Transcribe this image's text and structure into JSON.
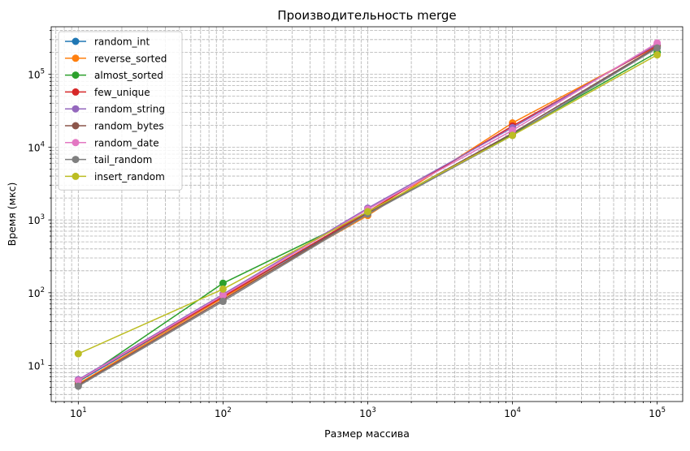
{
  "chart_data": {
    "type": "line",
    "title": "Производительность merge",
    "xlabel": "Размер массива",
    "ylabel": "Время (мкс)",
    "xscale": "log",
    "yscale": "log",
    "xlim": [
      6.5,
      150000
    ],
    "ylim": [
      3.2,
      450000
    ],
    "grid": true,
    "legend_position": "upper-left",
    "x": [
      10,
      100,
      1000,
      10000,
      100000
    ],
    "x_tick_labels": [
      {
        "base": "10",
        "exp": "1"
      },
      {
        "base": "10",
        "exp": "2"
      },
      {
        "base": "10",
        "exp": "3"
      },
      {
        "base": "10",
        "exp": "4"
      },
      {
        "base": "10",
        "exp": "5"
      }
    ],
    "y_tick_labels": [
      {
        "value": 10,
        "base": "10",
        "exp": "1"
      },
      {
        "value": 100,
        "base": "10",
        "exp": "2"
      },
      {
        "value": 1000,
        "base": "10",
        "exp": "3"
      },
      {
        "value": 10000,
        "base": "10",
        "exp": "4"
      },
      {
        "value": 100000,
        "base": "10",
        "exp": "5"
      }
    ],
    "series": [
      {
        "name": "random_int",
        "color": "#1f77b4",
        "values": [
          6.0,
          88,
          1250,
          15500,
          235000
        ]
      },
      {
        "name": "reverse_sorted",
        "color": "#ff7f0e",
        "values": [
          5.6,
          85,
          1150,
          21500,
          245000
        ]
      },
      {
        "name": "almost_sorted",
        "color": "#2ca02c",
        "values": [
          6.0,
          135,
          1250,
          15000,
          200000
        ]
      },
      {
        "name": "few_unique",
        "color": "#d62728",
        "values": [
          6.2,
          88,
          1300,
          19500,
          250000
        ]
      },
      {
        "name": "random_string",
        "color": "#9467bd",
        "values": [
          6.4,
          95,
          1450,
          18500,
          260000
        ]
      },
      {
        "name": "random_bytes",
        "color": "#8c564b",
        "values": [
          5.4,
          80,
          1250,
          15500,
          240000
        ]
      },
      {
        "name": "random_date",
        "color": "#e377c2",
        "values": [
          6.2,
          92,
          1400,
          17000,
          270000
        ]
      },
      {
        "name": "tail_random",
        "color": "#7f7f7f",
        "values": [
          5.2,
          76,
          1200,
          14500,
          230000
        ]
      },
      {
        "name": "insert_random",
        "color": "#bcbd22",
        "values": [
          14.5,
          112,
          1300,
          14500,
          185000
        ]
      }
    ]
  }
}
